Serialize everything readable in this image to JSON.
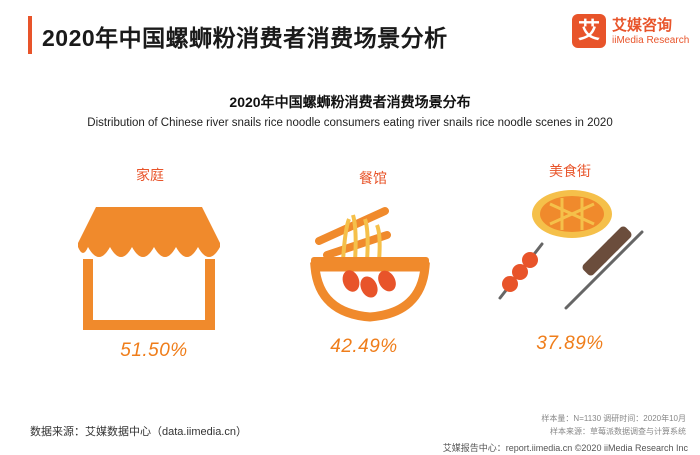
{
  "header": {
    "title": "2020年中国螺蛳粉消费者消费场景分析",
    "logo_mark": "艾",
    "logo_cn": "艾媒咨询",
    "logo_en": "iiMedia Research"
  },
  "chart_data": {
    "type": "bar",
    "title": "2020年中国螺蛳粉消费者消费场景分布",
    "subtitle": "Distribution of Chinese river snails rice noodle consumers eating river snails rice noodle scenes in 2020",
    "categories": [
      "家庭",
      "餐馆",
      "美食街"
    ],
    "values": [
      51.5,
      42.49,
      37.89
    ],
    "value_labels": [
      "51.50%",
      "42.49%",
      "37.89%"
    ],
    "unit": "%",
    "icons": [
      "storefront-awning-icon",
      "noodle-bowl-icon",
      "street-food-icon"
    ],
    "colors": {
      "label": "#e8542a",
      "value": "#ef7d1a",
      "icon": "#f08a2c"
    }
  },
  "footer": {
    "source": "数据来源：艾媒数据中心（data.iimedia.cn）",
    "sample_line": "样本量：N=1130    调研时间：2020年10月",
    "source_line": "样本来源：草莓派数据调查与计算系统",
    "bottom_line": "艾媒报告中心：report.iimedia.cn  ©2020  iiMedia Research  Inc"
  }
}
